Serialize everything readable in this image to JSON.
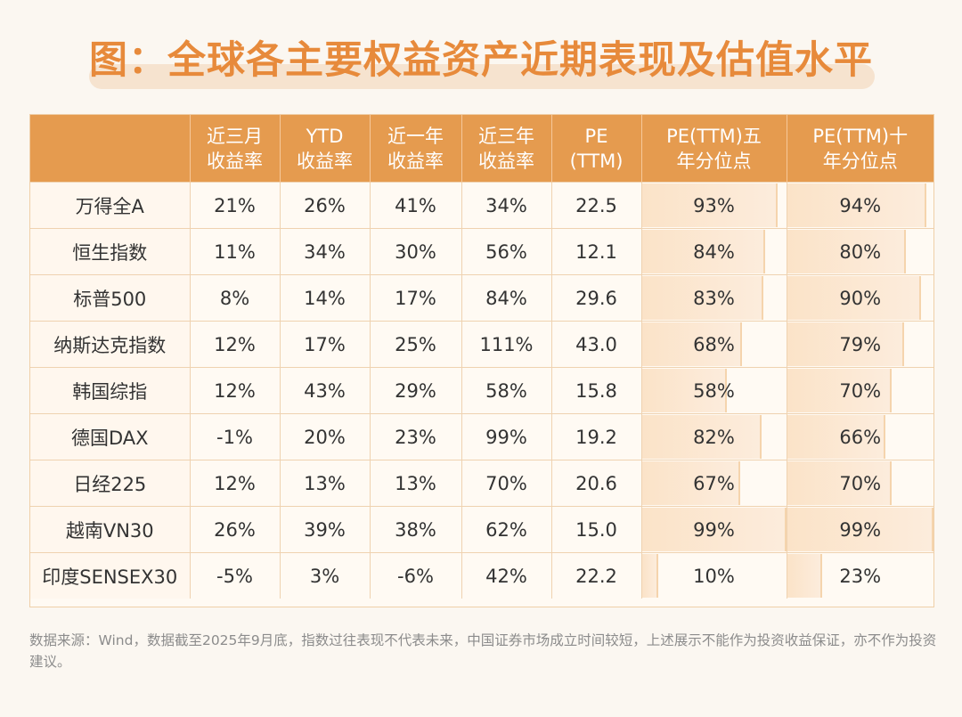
{
  "title": "图：全球各主要权益资产近期表现及估值水平",
  "footnote": "数据来源：Wind，数据截至2025年9月底，指数过往表现不代表未来，中国证券市场成立时间较短，上述展示不能作为投资收益保证，亦不作为投资建议。",
  "chart_data": {
    "type": "table",
    "title": "图：全球各主要权益资产近期表现及估值水平",
    "columns": [
      {
        "key": "name",
        "label": ""
      },
      {
        "key": "r3m",
        "label": "近三月\n收益率"
      },
      {
        "key": "ytd",
        "label": "YTD\n收益率"
      },
      {
        "key": "r1y",
        "label": "近一年\n收益率"
      },
      {
        "key": "r3y",
        "label": "近三年\n收益率"
      },
      {
        "key": "pe",
        "label": "PE\n(TTM)"
      },
      {
        "key": "pe5",
        "label": "PE(TTM)五\n年分位点"
      },
      {
        "key": "pe10",
        "label": "PE(TTM)十\n年分位点"
      }
    ],
    "rows": [
      {
        "name": "万得全A",
        "r3m": "21%",
        "ytd": "26%",
        "r1y": "41%",
        "r3y": "34%",
        "pe": "22.5",
        "pe5": "93%",
        "pe10": "94%"
      },
      {
        "name": "恒生指数",
        "r3m": "11%",
        "ytd": "34%",
        "r1y": "30%",
        "r3y": "56%",
        "pe": "12.1",
        "pe5": "84%",
        "pe10": "80%"
      },
      {
        "name": "标普500",
        "r3m": "8%",
        "ytd": "14%",
        "r1y": "17%",
        "r3y": "84%",
        "pe": "29.6",
        "pe5": "83%",
        "pe10": "90%"
      },
      {
        "name": "纳斯达克指数",
        "r3m": "12%",
        "ytd": "17%",
        "r1y": "25%",
        "r3y": "111%",
        "pe": "43.0",
        "pe5": "68%",
        "pe10": "79%"
      },
      {
        "name": "韩国综指",
        "r3m": "12%",
        "ytd": "43%",
        "r1y": "29%",
        "r3y": "58%",
        "pe": "15.8",
        "pe5": "58%",
        "pe10": "70%"
      },
      {
        "name": "德国DAX",
        "r3m": "-1%",
        "ytd": "20%",
        "r1y": "23%",
        "r3y": "99%",
        "pe": "19.2",
        "pe5": "82%",
        "pe10": "66%"
      },
      {
        "name": "日经225",
        "r3m": "12%",
        "ytd": "13%",
        "r1y": "13%",
        "r3y": "70%",
        "pe": "20.6",
        "pe5": "67%",
        "pe10": "70%"
      },
      {
        "name": "越南VN30",
        "r3m": "26%",
        "ytd": "39%",
        "r1y": "38%",
        "r3y": "62%",
        "pe": "15.0",
        "pe5": "99%",
        "pe10": "99%"
      },
      {
        "name": "印度SENSEX30",
        "r3m": "-5%",
        "ytd": "3%",
        "r1y": "-6%",
        "r3y": "42%",
        "pe": "22.2",
        "pe5": "10%",
        "pe10": "23%"
      }
    ],
    "bar_columns": [
      "pe5",
      "pe10"
    ],
    "colors": {
      "header": "#e59b4f",
      "title": "#e78a3b",
      "bar": "#fbe3c8"
    }
  }
}
